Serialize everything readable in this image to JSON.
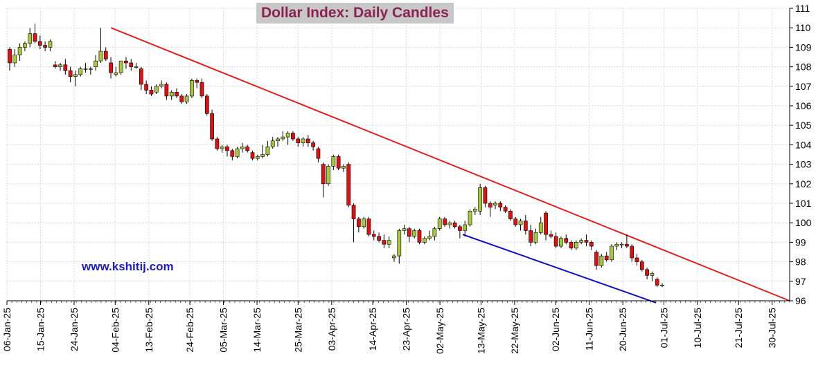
{
  "chart_data": {
    "type": "candlestick",
    "title": "Dollar Index: Daily Candles",
    "watermark": "www.kshitij.com",
    "ylim": [
      96,
      111
    ],
    "y_ticks": [
      96,
      97,
      98,
      99,
      100,
      101,
      102,
      103,
      104,
      105,
      106,
      107,
      108,
      109,
      110,
      111
    ],
    "x_ticks": [
      "06-Jan-25",
      "15-Jan-25",
      "24-Jan-25",
      "04-Feb-25",
      "13-Feb-25",
      "24-Feb-25",
      "05-Mar-25",
      "14-Mar-25",
      "25-Mar-25",
      "03-Apr-25",
      "14-Apr-25",
      "23-Apr-25",
      "02-May-25",
      "13-May-25",
      "22-May-25",
      "02-Jun-25",
      "11-Jun-25",
      "20-Jun-25",
      "01-Jul-25",
      "10-Jul-25",
      "21-Jul-25",
      "30-Jul-25"
    ],
    "up_color": "#a8c83c",
    "down_color": "#e01010",
    "candles_ohlc": [
      [
        108.9,
        109.0,
        107.8,
        108.2
      ],
      [
        108.2,
        108.9,
        108.0,
        108.6
      ],
      [
        108.6,
        109.2,
        108.3,
        109.0
      ],
      [
        109.0,
        109.3,
        108.8,
        109.2
      ],
      [
        109.2,
        110.0,
        109.0,
        109.7
      ],
      [
        109.7,
        110.2,
        109.2,
        109.3
      ],
      [
        109.3,
        109.6,
        108.9,
        109.1
      ],
      [
        109.1,
        109.3,
        108.8,
        109.0
      ],
      [
        109.0,
        109.4,
        108.8,
        109.3
      ],
      [
        108.1,
        108.3,
        107.9,
        108.0
      ],
      [
        108.0,
        108.2,
        107.8,
        108.1
      ],
      [
        108.1,
        108.4,
        107.6,
        107.8
      ],
      [
        107.8,
        108.0,
        107.2,
        107.5
      ],
      [
        107.5,
        107.8,
        107.0,
        107.6
      ],
      [
        107.6,
        108.0,
        107.5,
        107.9
      ],
      [
        107.9,
        108.2,
        107.7,
        107.9
      ],
      [
        107.9,
        108.0,
        107.6,
        107.9
      ],
      [
        108.0,
        108.6,
        107.8,
        108.3
      ],
      [
        108.3,
        110.0,
        108.2,
        108.8
      ],
      [
        108.8,
        109.0,
        108.3,
        108.4
      ],
      [
        108.2,
        108.5,
        107.4,
        107.7
      ],
      [
        107.6,
        108.0,
        107.5,
        107.7
      ],
      [
        107.7,
        108.3,
        107.6,
        108.3
      ],
      [
        108.3,
        108.5,
        107.9,
        108.2
      ],
      [
        108.2,
        108.4,
        107.8,
        108.0
      ],
      [
        108.0,
        108.2,
        107.9,
        108.0
      ],
      [
        107.9,
        108.0,
        106.8,
        107.1
      ],
      [
        107.1,
        107.3,
        106.6,
        106.8
      ],
      [
        106.8,
        107.0,
        106.5,
        106.6
      ],
      [
        106.7,
        107.1,
        106.6,
        107.0
      ],
      [
        107.0,
        107.3,
        106.9,
        107.1
      ],
      [
        107.1,
        107.2,
        106.3,
        106.5
      ],
      [
        106.5,
        106.8,
        106.3,
        106.7
      ],
      [
        106.7,
        106.9,
        106.4,
        106.5
      ],
      [
        106.5,
        106.6,
        106.1,
        106.2
      ],
      [
        106.2,
        106.6,
        106.1,
        106.5
      ],
      [
        106.5,
        107.4,
        106.4,
        107.3
      ],
      [
        107.3,
        107.4,
        106.9,
        107.2
      ],
      [
        107.2,
        107.4,
        106.4,
        106.5
      ],
      [
        106.5,
        106.6,
        105.5,
        105.6
      ],
      [
        105.6,
        105.8,
        104.2,
        104.3
      ],
      [
        104.3,
        104.4,
        103.7,
        103.8
      ],
      [
        103.8,
        104.0,
        103.6,
        103.9
      ],
      [
        103.9,
        104.0,
        103.4,
        103.7
      ],
      [
        103.7,
        103.8,
        103.2,
        103.4
      ],
      [
        103.4,
        103.9,
        103.3,
        103.8
      ],
      [
        103.8,
        104.1,
        103.6,
        103.9
      ],
      [
        103.9,
        104.0,
        103.6,
        103.7
      ],
      [
        103.6,
        103.7,
        103.2,
        103.3
      ],
      [
        103.3,
        103.5,
        103.2,
        103.4
      ],
      [
        103.4,
        104.0,
        103.3,
        103.5
      ],
      [
        103.5,
        104.2,
        103.4,
        103.9
      ],
      [
        103.9,
        104.4,
        103.8,
        104.2
      ],
      [
        104.2,
        104.4,
        103.9,
        104.3
      ],
      [
        104.3,
        104.7,
        104.2,
        104.4
      ],
      [
        104.4,
        104.7,
        104.0,
        104.6
      ],
      [
        104.6,
        104.7,
        104.2,
        104.3
      ],
      [
        104.3,
        104.4,
        103.9,
        104.1
      ],
      [
        104.1,
        104.4,
        103.9,
        104.3
      ],
      [
        104.3,
        104.5,
        103.9,
        104.1
      ],
      [
        104.1,
        104.2,
        103.7,
        103.9
      ],
      [
        103.8,
        103.9,
        103.1,
        103.3
      ],
      [
        103.0,
        103.1,
        101.3,
        102.0
      ],
      [
        102.0,
        103.0,
        101.9,
        102.9
      ],
      [
        102.9,
        103.5,
        102.7,
        103.4
      ],
      [
        103.4,
        103.5,
        102.7,
        102.8
      ],
      [
        102.8,
        103.0,
        102.6,
        102.9
      ],
      [
        103.0,
        103.1,
        100.8,
        100.9
      ],
      [
        100.9,
        101.0,
        99.0,
        100.2
      ],
      [
        100.2,
        100.3,
        99.5,
        99.8
      ],
      [
        99.8,
        100.3,
        99.7,
        100.2
      ],
      [
        100.2,
        100.3,
        99.3,
        99.4
      ],
      [
        99.4,
        99.6,
        99.1,
        99.3
      ],
      [
        99.3,
        99.5,
        99.0,
        99.1
      ],
      [
        99.1,
        99.4,
        98.7,
        98.9
      ],
      [
        98.9,
        99.3,
        98.7,
        99.1
      ],
      [
        98.2,
        98.4,
        98.0,
        98.3
      ],
      [
        98.3,
        99.7,
        97.9,
        99.6
      ],
      [
        99.6,
        99.9,
        99.4,
        99.7
      ],
      [
        99.7,
        99.8,
        99.0,
        99.3
      ],
      [
        99.3,
        99.7,
        99.2,
        99.6
      ],
      [
        99.6,
        99.7,
        98.9,
        99.0
      ],
      [
        99.0,
        99.3,
        98.9,
        99.2
      ],
      [
        99.2,
        99.6,
        99.1,
        99.3
      ],
      [
        99.3,
        99.8,
        99.1,
        99.7
      ],
      [
        99.7,
        100.3,
        99.6,
        100.2
      ],
      [
        100.2,
        100.3,
        99.8,
        99.9
      ],
      [
        99.9,
        100.1,
        99.7,
        100.0
      ],
      [
        100.0,
        100.1,
        99.7,
        99.8
      ],
      [
        99.8,
        99.9,
        99.2,
        99.6
      ],
      [
        99.6,
        100.1,
        99.3,
        99.9
      ],
      [
        99.9,
        100.7,
        99.8,
        100.6
      ],
      [
        100.6,
        100.8,
        100.4,
        100.7
      ],
      [
        100.6,
        102.0,
        100.4,
        101.8
      ],
      [
        101.8,
        101.9,
        100.8,
        101.0
      ],
      [
        101.0,
        101.1,
        100.3,
        100.8
      ],
      [
        100.9,
        101.1,
        100.7,
        101.0
      ],
      [
        101.0,
        101.1,
        100.6,
        100.8
      ],
      [
        100.8,
        100.9,
        100.5,
        100.6
      ],
      [
        100.6,
        100.7,
        100.1,
        100.2
      ],
      [
        100.2,
        100.3,
        99.8,
        99.9
      ],
      [
        99.9,
        100.2,
        99.6,
        100.1
      ],
      [
        100.1,
        100.4,
        99.4,
        99.6
      ],
      [
        99.6,
        99.9,
        98.8,
        99.0
      ],
      [
        99.0,
        99.7,
        98.9,
        99.5
      ],
      [
        99.5,
        100.3,
        99.4,
        100.0
      ],
      [
        100.5,
        100.6,
        99.1,
        99.4
      ],
      [
        99.4,
        99.6,
        99.2,
        99.3
      ],
      [
        99.3,
        99.5,
        98.7,
        98.8
      ],
      [
        98.8,
        99.3,
        98.7,
        99.2
      ],
      [
        99.2,
        99.4,
        98.9,
        99.0
      ],
      [
        99.0,
        99.1,
        98.6,
        98.7
      ],
      [
        98.7,
        99.1,
        98.6,
        99.0
      ],
      [
        99.0,
        99.2,
        98.9,
        99.1
      ],
      [
        99.1,
        99.4,
        98.8,
        99.0
      ],
      [
        99.0,
        99.1,
        98.6,
        98.8
      ],
      [
        98.5,
        98.6,
        97.6,
        97.8
      ],
      [
        97.8,
        98.4,
        97.7,
        98.3
      ],
      [
        98.3,
        98.5,
        98.0,
        98.1
      ],
      [
        98.1,
        98.9,
        98.0,
        98.8
      ],
      [
        98.8,
        99.0,
        98.6,
        98.9
      ],
      [
        98.9,
        99.0,
        98.7,
        98.9
      ],
      [
        98.9,
        99.4,
        98.7,
        98.8
      ],
      [
        98.8,
        98.9,
        98.0,
        98.2
      ],
      [
        98.2,
        98.4,
        97.8,
        98.0
      ],
      [
        98.0,
        98.1,
        97.5,
        97.6
      ],
      [
        97.6,
        97.7,
        97.1,
        97.3
      ],
      [
        97.3,
        97.5,
        97.0,
        97.4
      ],
      [
        97.1,
        97.2,
        96.7,
        96.8
      ],
      [
        96.8,
        96.9,
        96.7,
        96.8
      ]
    ],
    "trendlines": [
      {
        "color": "#e02020",
        "from": {
          "day": 21,
          "value": 110.0
        },
        "to": {
          "day": 158,
          "value": 96.0
        }
      },
      {
        "color": "#1010c0",
        "from": {
          "day": 92,
          "value": 99.4
        },
        "to": {
          "day": 131,
          "value": 95.9
        }
      }
    ]
  }
}
